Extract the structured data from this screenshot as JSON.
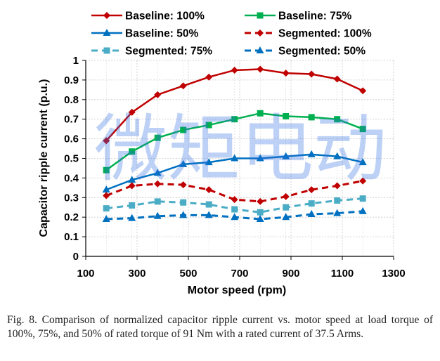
{
  "chart_data": {
    "type": "line",
    "xlabel": "Motor speed (rpm)",
    "ylabel": "Capacitor ripple current (p.u.)",
    "xlim": [
      100,
      1300
    ],
    "ylim": [
      0,
      1
    ],
    "xticks": [
      "100",
      "300",
      "500",
      "700",
      "900",
      "1100",
      "1300"
    ],
    "yticks": [
      "0",
      "0.1",
      "0.2",
      "0.3",
      "0.4",
      "0.5",
      "0.6",
      "0.7",
      "0.8",
      "0.9",
      "1"
    ],
    "grid": true,
    "legend_position": "top",
    "x": [
      180,
      280,
      380,
      480,
      580,
      680,
      780,
      880,
      980,
      1080,
      1180
    ],
    "series": [
      {
        "name": "Baseline: 100%",
        "color": "#c00000",
        "marker": "diamond",
        "dashed": false,
        "values": [
          0.59,
          0.735,
          0.825,
          0.87,
          0.915,
          0.95,
          0.955,
          0.935,
          0.93,
          0.905,
          0.845
        ]
      },
      {
        "name": "Baseline: 75%",
        "color": "#00b050",
        "marker": "square",
        "dashed": false,
        "values": [
          0.44,
          0.535,
          0.605,
          0.645,
          0.67,
          0.7,
          0.73,
          0.715,
          0.71,
          0.7,
          0.65
        ]
      },
      {
        "name": "Baseline: 50%",
        "color": "#0070c0",
        "marker": "triangle",
        "dashed": false,
        "values": [
          0.34,
          0.39,
          0.425,
          0.47,
          0.48,
          0.5,
          0.5,
          0.51,
          0.52,
          0.51,
          0.48
        ]
      },
      {
        "name": "Segmented: 100%",
        "color": "#c00000",
        "marker": "diamond",
        "dashed": true,
        "values": [
          0.31,
          0.36,
          0.37,
          0.365,
          0.34,
          0.29,
          0.28,
          0.305,
          0.34,
          0.36,
          0.385
        ]
      },
      {
        "name": "Segmented: 75%",
        "color": "#4bacc6",
        "marker": "square",
        "dashed": true,
        "values": [
          0.245,
          0.26,
          0.28,
          0.275,
          0.265,
          0.24,
          0.225,
          0.25,
          0.27,
          0.285,
          0.295
        ]
      },
      {
        "name": "Segmented: 50%",
        "color": "#0070c0",
        "marker": "triangle",
        "dashed": true,
        "values": [
          0.19,
          0.195,
          0.205,
          0.21,
          0.21,
          0.2,
          0.19,
          0.2,
          0.215,
          0.22,
          0.23
        ]
      }
    ]
  },
  "watermark": "微矩电动",
  "caption": "Fig. 8.   Comparison of normalized capacitor ripple current vs. motor speed at load torque of 100%, 75%, and 50% of rated torque of 91 Nm with a rated current of 37.5 Arms."
}
